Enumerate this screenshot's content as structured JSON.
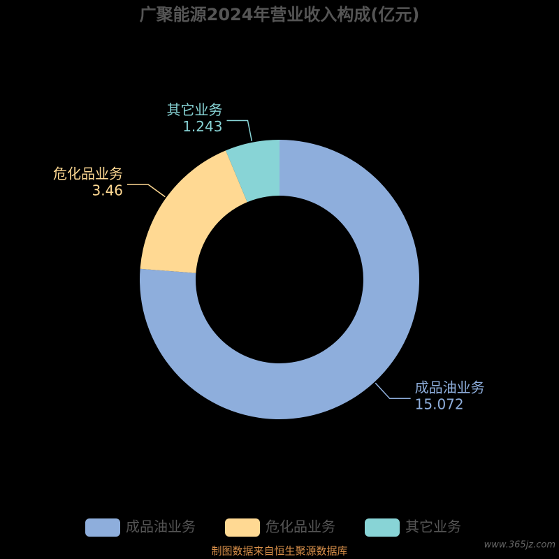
{
  "chart_data": {
    "type": "donut",
    "title": "广聚能源2024年营业收入构成(亿元)",
    "categories": [
      "成品油业务",
      "危化品业务",
      "其它业务"
    ],
    "values": [
      15.072,
      3.46,
      1.243
    ],
    "colors": [
      "#8eaedc",
      "#ffd993",
      "#88d4d6"
    ],
    "legend": "bottom",
    "source": "制图数据来自恒生聚源数据库",
    "watermark": "www.365jz.com"
  }
}
